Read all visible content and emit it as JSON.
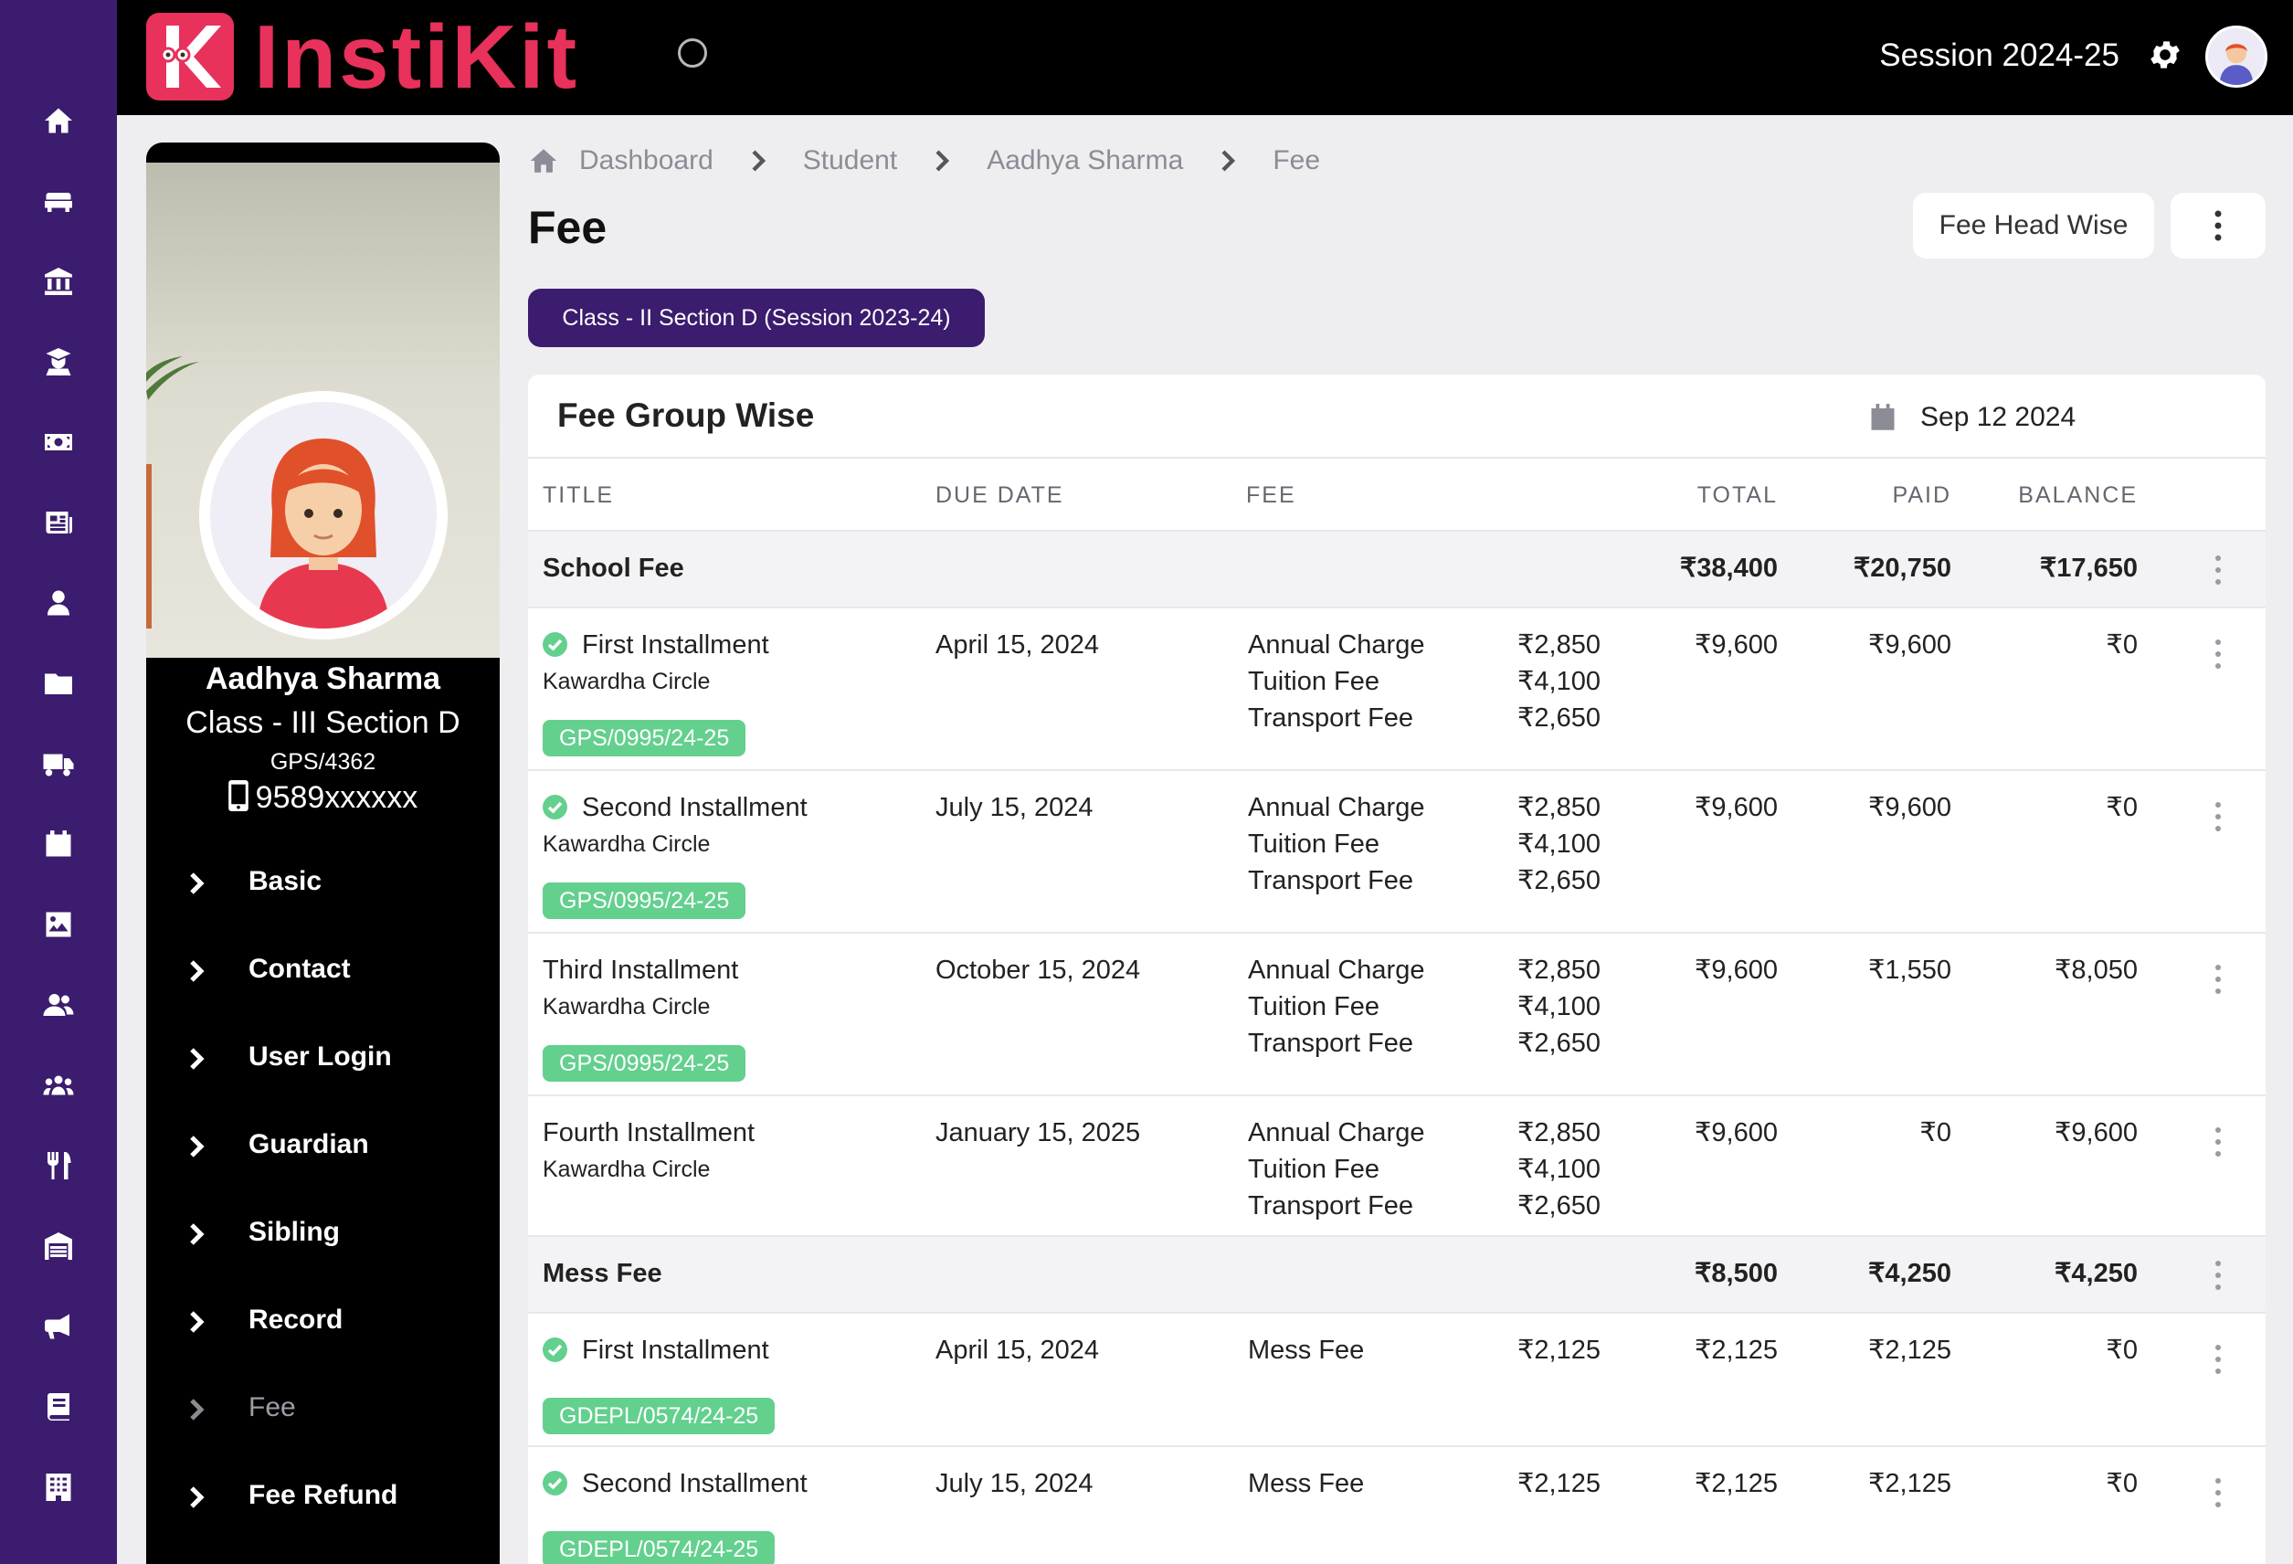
{
  "app": {
    "logo_text": "InstiKit",
    "session": "Session 2024-25"
  },
  "breadcrumb": [
    "Dashboard",
    "Student",
    "Aadhya Sharma",
    "Fee"
  ],
  "page": {
    "title": "Fee",
    "fee_head_button": "Fee Head Wise",
    "class_pill": "Class - II Section D (Session 2023-24)"
  },
  "student": {
    "name": "Aadhya Sharma",
    "class": "Class - III Section D",
    "admission_no": "GPS/4362",
    "phone": "9589xxxxxx"
  },
  "profile_menu": [
    "Basic",
    "Contact",
    "User Login",
    "Guardian",
    "Sibling",
    "Record",
    "Fee",
    "Fee Refund"
  ],
  "profile_menu_active": "Fee",
  "card": {
    "title": "Fee Group Wise",
    "date": "Sep 12 2024",
    "columns": {
      "title": "TITLE",
      "due_date": "DUE DATE",
      "fee": "FEE",
      "total": "TOTAL",
      "paid": "PAID",
      "balance": "BALANCE"
    }
  },
  "groups": [
    {
      "name": "School Fee",
      "total": "₹38,400",
      "paid": "₹20,750",
      "balance": "₹17,650",
      "rows": [
        {
          "title": "First Installment",
          "location": "Kawardha Circle",
          "paid_flag": true,
          "due": "April 15, 2024",
          "fees": [
            [
              "Annual Charge",
              "₹2,850"
            ],
            [
              "Tuition Fee",
              "₹4,100"
            ],
            [
              "Transport Fee",
              "₹2,650"
            ]
          ],
          "total": "₹9,600",
          "paid": "₹9,600",
          "balance": "₹0",
          "receipt": "GPS/0995/24-25"
        },
        {
          "title": "Second Installment",
          "location": "Kawardha Circle",
          "paid_flag": true,
          "due": "July 15, 2024",
          "fees": [
            [
              "Annual Charge",
              "₹2,850"
            ],
            [
              "Tuition Fee",
              "₹4,100"
            ],
            [
              "Transport Fee",
              "₹2,650"
            ]
          ],
          "total": "₹9,600",
          "paid": "₹9,600",
          "balance": "₹0",
          "receipt": "GPS/0995/24-25"
        },
        {
          "title": "Third Installment",
          "location": "Kawardha Circle",
          "paid_flag": false,
          "due": "October 15, 2024",
          "fees": [
            [
              "Annual Charge",
              "₹2,850"
            ],
            [
              "Tuition Fee",
              "₹4,100"
            ],
            [
              "Transport Fee",
              "₹2,650"
            ]
          ],
          "total": "₹9,600",
          "paid": "₹1,550",
          "balance": "₹8,050",
          "receipt": "GPS/0995/24-25"
        },
        {
          "title": "Fourth Installment",
          "location": "Kawardha Circle",
          "paid_flag": false,
          "due": "January 15, 2025",
          "fees": [
            [
              "Annual Charge",
              "₹2,850"
            ],
            [
              "Tuition Fee",
              "₹4,100"
            ],
            [
              "Transport Fee",
              "₹2,650"
            ]
          ],
          "total": "₹9,600",
          "paid": "₹0",
          "balance": "₹9,600",
          "receipt": ""
        }
      ]
    },
    {
      "name": "Mess Fee",
      "total": "₹8,500",
      "paid": "₹4,250",
      "balance": "₹4,250",
      "rows": [
        {
          "title": "First Installment",
          "location": "",
          "paid_flag": true,
          "due": "April 15, 2024",
          "fees": [
            [
              "Mess Fee",
              "₹2,125"
            ]
          ],
          "total": "₹2,125",
          "paid": "₹2,125",
          "balance": "₹0",
          "receipt": "GDEPL/0574/24-25"
        },
        {
          "title": "Second Installment",
          "location": "",
          "paid_flag": true,
          "due": "July 15, 2024",
          "fees": [
            [
              "Mess Fee",
              "₹2,125"
            ]
          ],
          "total": "₹2,125",
          "paid": "₹2,125",
          "balance": "₹0",
          "receipt": "GDEPL/0574/24-25"
        }
      ]
    }
  ],
  "rail_icons": [
    "home-icon",
    "sofa-icon",
    "bank-icon",
    "graduate-icon",
    "money-icon",
    "newspaper-icon",
    "user-icon",
    "folder-icon",
    "truck-icon",
    "calendar-icon",
    "image-icon",
    "users-icon",
    "group-icon",
    "utensils-icon",
    "warehouse-icon",
    "megaphone-icon",
    "book-icon",
    "building-icon"
  ],
  "colors": {
    "brand": "#e8315b",
    "rail": "#3b1c6e",
    "paid_badge": "#63d08e"
  }
}
